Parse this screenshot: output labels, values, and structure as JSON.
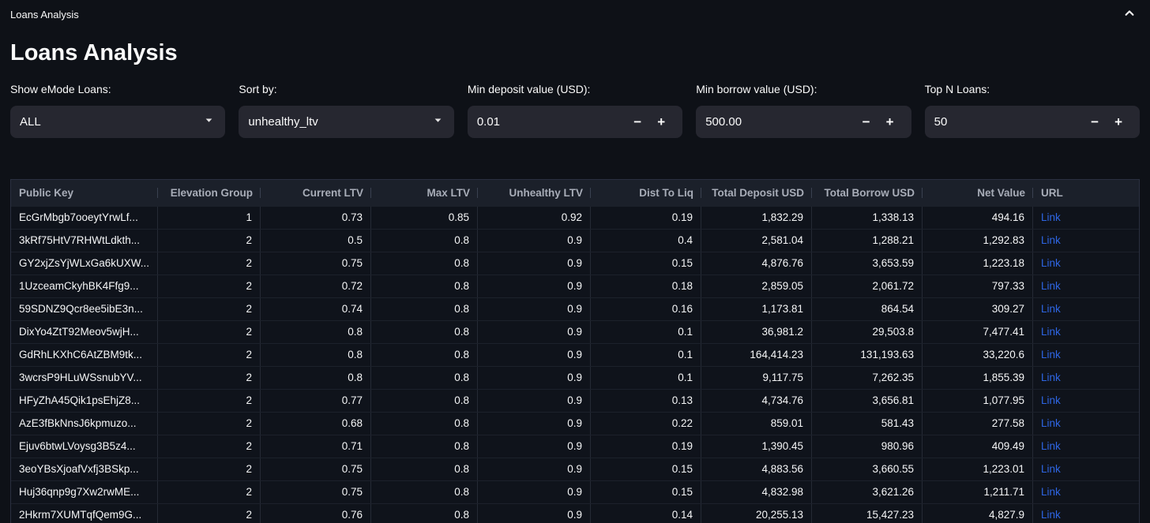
{
  "topbar": {
    "title": "Loans Analysis"
  },
  "page": {
    "title": "Loans Analysis"
  },
  "icons": {
    "collapse": "chevron-up-icon",
    "dropdown": "chevron-down-icon",
    "decrement_glyph": "−",
    "increment_glyph": "+"
  },
  "colors": {
    "background": "#0e1117",
    "control_bg": "#262730",
    "header_bg": "#1b202a",
    "link": "#2e66e5"
  },
  "filters": {
    "emode": {
      "label": "Show eMode Loans:",
      "value": "ALL",
      "type": "select"
    },
    "sort": {
      "label": "Sort by:",
      "value": "unhealthy_ltv",
      "type": "select"
    },
    "min_deposit": {
      "label": "Min deposit value (USD):",
      "value": "0.01",
      "type": "number"
    },
    "min_borrow": {
      "label": "Min borrow value (USD):",
      "value": "500.00",
      "type": "number"
    },
    "top_n": {
      "label": "Top N Loans:",
      "value": "50",
      "type": "number"
    }
  },
  "table": {
    "columns": [
      "Public Key",
      "Elevation Group",
      "Current LTV",
      "Max LTV",
      "Unhealthy LTV",
      "Dist To Liq",
      "Total Deposit USD",
      "Total Borrow USD",
      "Net Value",
      "URL"
    ],
    "link_label": "Link",
    "rows": [
      [
        "EcGrMbgb7ooeytYrwLf...",
        "1",
        "0.73",
        "0.85",
        "0.92",
        "0.19",
        "1,832.29",
        "1,338.13",
        "494.16",
        "Link"
      ],
      [
        "3kRf75HtV7RHWtLdkth...",
        "2",
        "0.5",
        "0.8",
        "0.9",
        "0.4",
        "2,581.04",
        "1,288.21",
        "1,292.83",
        "Link"
      ],
      [
        "GY2xjZsYjWLxGa6kUXW...",
        "2",
        "0.75",
        "0.8",
        "0.9",
        "0.15",
        "4,876.76",
        "3,653.59",
        "1,223.18",
        "Link"
      ],
      [
        "1UzceamCkyhBK4Ffg9...",
        "2",
        "0.72",
        "0.8",
        "0.9",
        "0.18",
        "2,859.05",
        "2,061.72",
        "797.33",
        "Link"
      ],
      [
        "59SDNZ9Qcr8ee5ibE3n...",
        "2",
        "0.74",
        "0.8",
        "0.9",
        "0.16",
        "1,173.81",
        "864.54",
        "309.27",
        "Link"
      ],
      [
        "DixYo4ZtT92Meov5wjH...",
        "2",
        "0.8",
        "0.8",
        "0.9",
        "0.1",
        "36,981.2",
        "29,503.8",
        "7,477.41",
        "Link"
      ],
      [
        "GdRhLKXhC6AtZBM9tk...",
        "2",
        "0.8",
        "0.8",
        "0.9",
        "0.1",
        "164,414.23",
        "131,193.63",
        "33,220.6",
        "Link"
      ],
      [
        "3wcrsP9HLuWSsnubYV...",
        "2",
        "0.8",
        "0.8",
        "0.9",
        "0.1",
        "9,117.75",
        "7,262.35",
        "1,855.39",
        "Link"
      ],
      [
        "HFyZhA45Qik1psEhjZ8...",
        "2",
        "0.77",
        "0.8",
        "0.9",
        "0.13",
        "4,734.76",
        "3,656.81",
        "1,077.95",
        "Link"
      ],
      [
        "AzE3fBkNnsJ6kpmuzo...",
        "2",
        "0.68",
        "0.8",
        "0.9",
        "0.22",
        "859.01",
        "581.43",
        "277.58",
        "Link"
      ],
      [
        "Ejuv6btwLVoysg3B5z4...",
        "2",
        "0.71",
        "0.8",
        "0.9",
        "0.19",
        "1,390.45",
        "980.96",
        "409.49",
        "Link"
      ],
      [
        "3eoYBsXjoafVxfj3BSkp...",
        "2",
        "0.75",
        "0.8",
        "0.9",
        "0.15",
        "4,883.56",
        "3,660.55",
        "1,223.01",
        "Link"
      ],
      [
        "Huj36qnp9g7Xw2rwME...",
        "2",
        "0.75",
        "0.8",
        "0.9",
        "0.15",
        "4,832.98",
        "3,621.26",
        "1,211.71",
        "Link"
      ],
      [
        "2Hkrm7XUMTqfQem9G...",
        "2",
        "0.76",
        "0.8",
        "0.9",
        "0.14",
        "20,255.13",
        "15,427.23",
        "4,827.9",
        "Link"
      ]
    ]
  }
}
